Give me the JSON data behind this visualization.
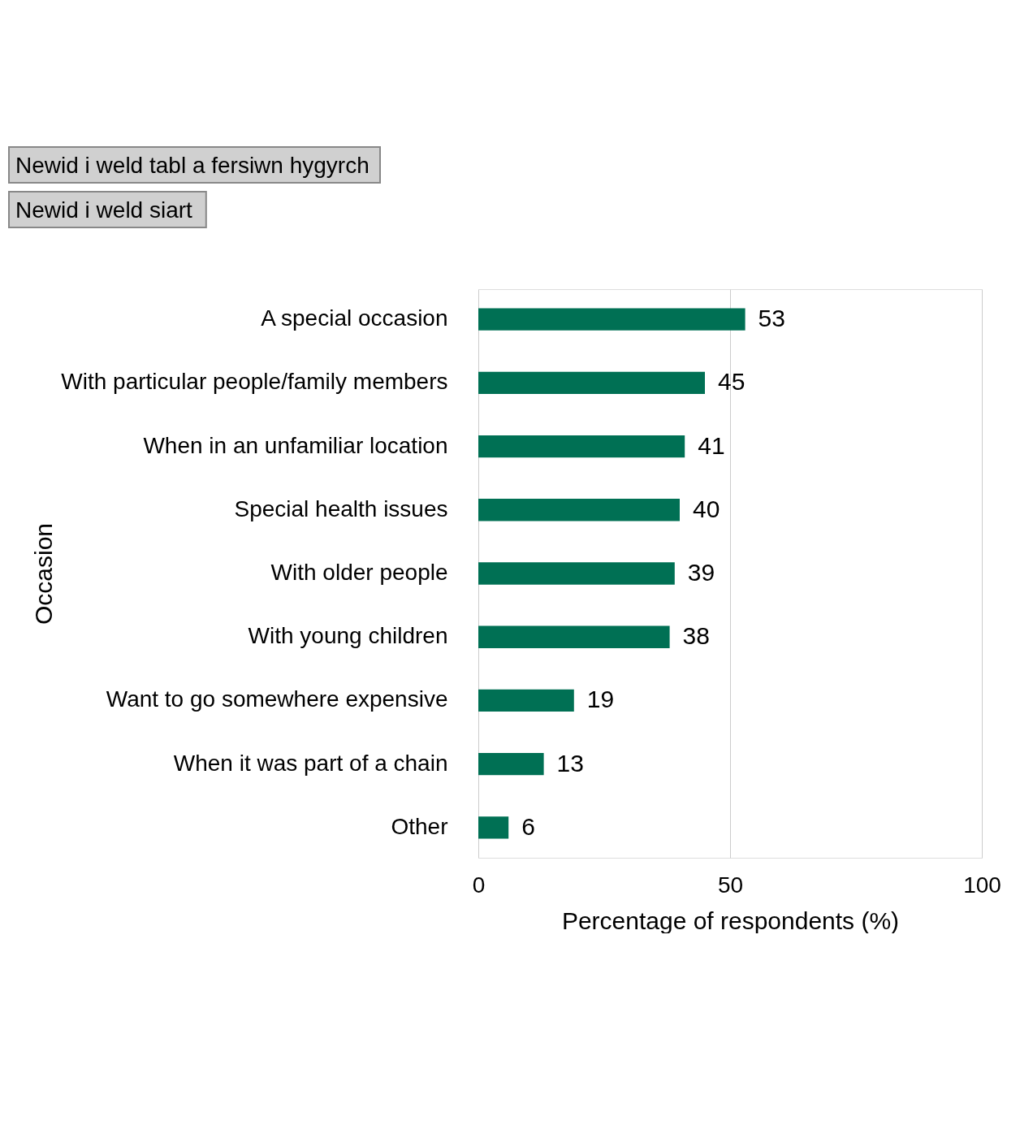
{
  "chart_data": {
    "type": "bar",
    "orientation": "horizontal",
    "annotations": [
      "Newid i weld tabl a fersiwn hygyrch",
      "Newid i weld siart"
    ],
    "xlabel": "Percentage of respondents (%)",
    "ylabel": "Occasion",
    "categories": [
      "A special occasion",
      "With particular people/family members",
      "When in an unfamiliar location",
      "Special health issues",
      "With older people",
      "With young children",
      "Want to go somewhere expensive",
      "When it was part of a chain",
      "Other"
    ],
    "values": [
      53,
      45,
      41,
      40,
      39,
      38,
      19,
      13,
      6
    ],
    "color": "#007054",
    "xlim": [
      0,
      100
    ],
    "xticks": [
      0,
      50,
      100
    ],
    "grid": "x",
    "data_labels": true
  }
}
